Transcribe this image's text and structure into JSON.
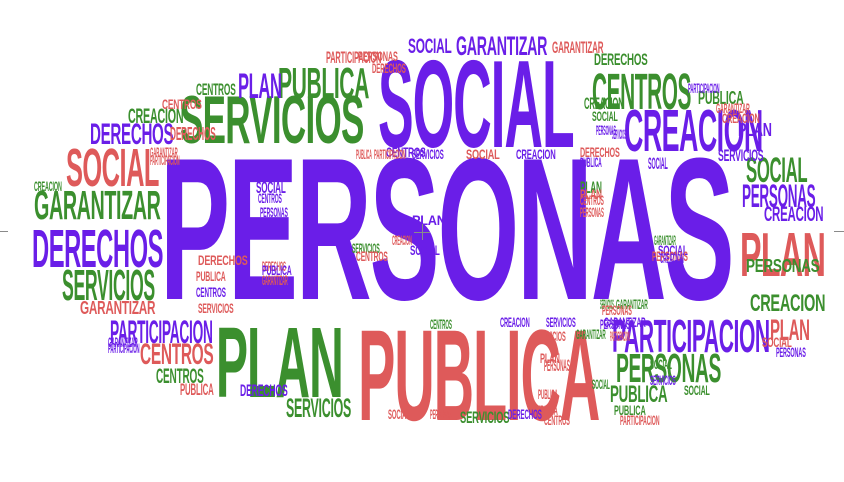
{
  "colors": {
    "purple": "#6a1ee8",
    "red": "#de5a5a",
    "green": "#3b8f2e"
  },
  "words": [
    {
      "text": "PERSONAS",
      "color": "purple"
    },
    {
      "text": "SOCIAL",
      "color": "purple"
    },
    {
      "text": "PUBLICA",
      "color": "red"
    },
    {
      "text": "SERVICIOS",
      "color": "green"
    },
    {
      "text": "PLAN",
      "color": "green"
    },
    {
      "text": "CREACION",
      "color": "purple"
    },
    {
      "text": "PUBLICA",
      "color": "green"
    },
    {
      "text": "CENTROS",
      "color": "green"
    },
    {
      "text": "PLAN",
      "color": "purple"
    },
    {
      "text": "PARTICIPACION",
      "color": "purple"
    },
    {
      "text": "PERSONAS",
      "color": "green"
    },
    {
      "text": "PLAN",
      "color": "red"
    },
    {
      "text": "SOCIAL",
      "color": "red"
    },
    {
      "text": "GARANTIZAR",
      "color": "green"
    },
    {
      "text": "DERECHOS",
      "color": "purple"
    },
    {
      "text": "SERVICIOS",
      "color": "green"
    },
    {
      "text": "DERECHOS",
      "color": "purple"
    },
    {
      "text": "GARANTIZAR",
      "color": "purple"
    },
    {
      "text": "DERECHOS",
      "color": "red"
    },
    {
      "text": "SOCIAL",
      "color": "green"
    },
    {
      "text": "PERSONAS",
      "color": "purple"
    },
    {
      "text": "CREACION",
      "color": "purple"
    },
    {
      "text": "PERSONAS",
      "color": "green"
    },
    {
      "text": "CREACION",
      "color": "green"
    },
    {
      "text": "PLAN",
      "color": "red"
    },
    {
      "text": "PARTICIPACION",
      "color": "purple"
    },
    {
      "text": "CENTROS",
      "color": "red"
    },
    {
      "text": "GARANTIZAR",
      "color": "red"
    },
    {
      "text": "CREACION",
      "color": "green"
    },
    {
      "text": "PUBLICA",
      "color": "green"
    },
    {
      "text": "SERVICIOS",
      "color": "green"
    },
    {
      "text": "CENTROS",
      "color": "green"
    },
    {
      "text": "PUBLICA",
      "color": "green"
    },
    {
      "text": "SOCIAL",
      "color": "purple"
    },
    {
      "text": "PLAN",
      "color": "purple"
    },
    {
      "text": "CENTROS",
      "color": "green"
    },
    {
      "text": "PUBLICA",
      "color": "red"
    },
    {
      "text": "DERECHOS",
      "color": "purple"
    },
    {
      "text": "SERVICIOS",
      "color": "green"
    },
    {
      "text": "PARTICIPACION",
      "color": "red"
    },
    {
      "text": "GARANTIZAR",
      "color": "red"
    },
    {
      "text": "CREACION",
      "color": "green"
    },
    {
      "text": "SOCIAL",
      "color": "green"
    },
    {
      "text": "PERSONAS",
      "color": "purple"
    },
    {
      "text": "SERVICIOS",
      "color": "purple"
    },
    {
      "text": "PERSONAS",
      "color": "red"
    },
    {
      "text": "PUBLICA",
      "color": "red"
    },
    {
      "text": "PUBLICA",
      "color": "red"
    },
    {
      "text": "CENTROS",
      "color": "red"
    },
    {
      "text": "PLAN",
      "color": "red"
    },
    {
      "text": "SOCIAL",
      "color": "green"
    },
    {
      "text": "PUBLICA",
      "color": "purple"
    },
    {
      "text": "PLAN",
      "color": "green"
    },
    {
      "text": "SOCIAL",
      "color": "purple"
    },
    {
      "text": "DERECHOS",
      "color": "red"
    },
    {
      "text": "SERVICIOS",
      "color": "red"
    },
    {
      "text": "PLAN",
      "color": "red"
    },
    {
      "text": "CENTROS",
      "color": "red"
    },
    {
      "text": "PERSONAS",
      "color": "red"
    },
    {
      "text": "DERECHOS",
      "color": "green"
    },
    {
      "text": "SOCIAL",
      "color": "purple"
    },
    {
      "text": "GARANTIZAR",
      "color": "green"
    },
    {
      "text": "SERVICIOS",
      "color": "purple"
    },
    {
      "text": "CREACION",
      "color": "purple"
    },
    {
      "text": "GARANTIZAR",
      "color": "purple"
    },
    {
      "text": "PARTICIPACION",
      "color": "red"
    },
    {
      "text": "SOCIAL",
      "color": "red"
    },
    {
      "text": "PERSONAS",
      "color": "red"
    },
    {
      "text": "CENTROS",
      "color": "green"
    },
    {
      "text": "SOCIAL",
      "color": "green"
    },
    {
      "text": "GARANTIZAR",
      "color": "green"
    },
    {
      "text": "SOCIAL",
      "color": "purple"
    },
    {
      "text": "PERSONAS",
      "color": "red"
    },
    {
      "text": "CREACION",
      "color": "purple"
    },
    {
      "text": "SOCIAL",
      "color": "green"
    },
    {
      "text": "PUBLICA",
      "color": "green"
    },
    {
      "text": "PARTICIPACION",
      "color": "red"
    },
    {
      "text": "CENTROS",
      "color": "purple"
    },
    {
      "text": "PLAN",
      "color": "purple"
    },
    {
      "text": "CREACION",
      "color": "red"
    },
    {
      "text": "SOCIAL",
      "color": "purple"
    },
    {
      "text": "SERVICIOS",
      "color": "purple"
    },
    {
      "text": "PERSONAS",
      "color": "purple"
    },
    {
      "text": "CENTROS",
      "color": "purple"
    },
    {
      "text": "DERECHOS",
      "color": "red"
    },
    {
      "text": "PUBLICA",
      "color": "red"
    },
    {
      "text": "CENTROS",
      "color": "purple"
    },
    {
      "text": "SERVICIOS",
      "color": "red"
    },
    {
      "text": "DERECHOS",
      "color": "red"
    },
    {
      "text": "GARANTIZAR",
      "color": "red"
    },
    {
      "text": "PUBLICA",
      "color": "purple"
    },
    {
      "text": "SERVICIOS",
      "color": "green"
    },
    {
      "text": "CENTROS",
      "color": "red"
    },
    {
      "text": "PARTICIPACION",
      "color": "red"
    },
    {
      "text": "SERVICIOS",
      "color": "purple"
    },
    {
      "text": "SOCIAL",
      "color": "red"
    },
    {
      "text": "CREACION",
      "color": "purple"
    },
    {
      "text": "PUBLICA",
      "color": "red"
    },
    {
      "text": "DERECHOS",
      "color": "purple"
    },
    {
      "text": "GARANTIZAR",
      "color": "green"
    },
    {
      "text": "SERVICIOS",
      "color": "green"
    },
    {
      "text": "PERSONAS",
      "color": "red"
    },
    {
      "text": "PERSONAS",
      "color": "purple"
    },
    {
      "text": "SERVICIOS",
      "color": "purple"
    },
    {
      "text": "PARTICIPACION",
      "color": "purple"
    },
    {
      "text": "GARANTIZAR",
      "color": "red"
    },
    {
      "text": "CREACION",
      "color": "red"
    },
    {
      "text": "SOCIAL",
      "color": "red"
    },
    {
      "text": "PERSONAS",
      "color": "purple"
    },
    {
      "text": "GARANTIZAR",
      "color": "purple"
    },
    {
      "text": "PARTICIPACION",
      "color": "purple"
    },
    {
      "text": "CREACION",
      "color": "green"
    },
    {
      "text": "GARANTIZAR",
      "color": "red"
    },
    {
      "text": "PARTICIPACION",
      "color": "red"
    },
    {
      "text": "CENTROS",
      "color": "red"
    },
    {
      "text": "PERSONAS",
      "color": "red"
    },
    {
      "text": "DERECHOS",
      "color": "red"
    }
  ]
}
